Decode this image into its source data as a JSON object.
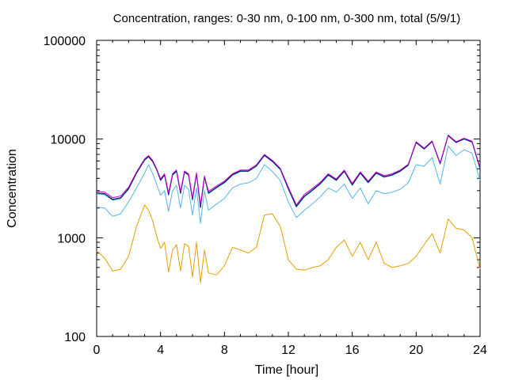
{
  "chart_data": {
    "type": "line",
    "title": "Concentration, ranges: 0-30 nm, 0-100 nm, 0-300 nm, total (5/9/1)",
    "xlabel": "Time [hour]",
    "ylabel": "Concentration",
    "xlim": [
      0,
      24
    ],
    "ylim": [
      100,
      100000
    ],
    "yscale": "log",
    "grid": false,
    "legend": "none",
    "x_ticks": [
      0,
      4,
      8,
      12,
      16,
      20,
      24
    ],
    "x_tick_labels": [
      "0",
      "4",
      "8",
      "12",
      "16",
      "20",
      "24"
    ],
    "y_ticks": [
      100,
      1000,
      10000,
      100000
    ],
    "y_tick_labels": [
      "100",
      "1000",
      "10000",
      "100000"
    ],
    "x": [
      0,
      0.5,
      1,
      1.5,
      2,
      2.5,
      3,
      3.25,
      3.5,
      3.75,
      4,
      4.25,
      4.5,
      4.75,
      5,
      5.25,
      5.5,
      5.75,
      6,
      6.25,
      6.5,
      6.75,
      7,
      7.5,
      8,
      8.5,
      9,
      9.5,
      10,
      10.5,
      11,
      11.5,
      12,
      12.5,
      13,
      13.5,
      14,
      14.5,
      15,
      15.5,
      16,
      16.5,
      17,
      17.5,
      18,
      18.5,
      19,
      19.5,
      20,
      20.5,
      21,
      21.5,
      22,
      22.5,
      23,
      23.5,
      24
    ],
    "series": [
      {
        "color": "#e69f00",
        "values": [
          740,
          620,
          460,
          480,
          650,
          1300,
          2150,
          1900,
          1500,
          1050,
          780,
          900,
          450,
          750,
          850,
          460,
          870,
          820,
          400,
          900,
          350,
          750,
          440,
          420,
          520,
          800,
          750,
          700,
          800,
          1700,
          1750,
          1300,
          600,
          480,
          470,
          500,
          520,
          600,
          800,
          950,
          650,
          900,
          600,
          900,
          550,
          500,
          520,
          550,
          650,
          850,
          1100,
          700,
          1550,
          1250,
          1200,
          1000,
          480
        ]
      },
      {
        "color": "#56b4e9",
        "values": [
          2050,
          2000,
          1650,
          1750,
          2300,
          3200,
          4500,
          5500,
          4500,
          3500,
          2700,
          3000,
          1850,
          3000,
          3400,
          2000,
          3400,
          3100,
          1700,
          3200,
          1400,
          3000,
          1900,
          2200,
          2500,
          3200,
          3500,
          3600,
          4000,
          5500,
          4700,
          3800,
          2300,
          1600,
          1900,
          2200,
          2600,
          3200,
          2900,
          3500,
          2500,
          3200,
          2200,
          3000,
          2800,
          2900,
          3100,
          3600,
          5500,
          5300,
          6500,
          3500,
          8500,
          6800,
          7800,
          7200,
          3800
        ]
      },
      {
        "color": "#009e73",
        "values": [
          2800,
          2750,
          2400,
          2500,
          3100,
          4500,
          6100,
          6600,
          5900,
          4900,
          3800,
          4300,
          2700,
          4300,
          4700,
          2800,
          4600,
          4300,
          2400,
          4400,
          2000,
          4100,
          2800,
          3200,
          3600,
          4300,
          4700,
          4700,
          5300,
          6800,
          5900,
          4900,
          3100,
          2050,
          2600,
          3000,
          3500,
          4300,
          3800,
          4700,
          3400,
          4500,
          3600,
          4500,
          4100,
          4300,
          4700,
          5400,
          9200,
          7900,
          9400,
          5600,
          10800,
          9200,
          10000,
          9300,
          5000
        ]
      },
      {
        "color": "#000080",
        "values": [
          2850,
          2800,
          2450,
          2550,
          3150,
          4550,
          6150,
          6650,
          5950,
          4950,
          3850,
          4350,
          2750,
          4350,
          4750,
          2850,
          4650,
          4350,
          2450,
          4450,
          2050,
          4150,
          2850,
          3250,
          3650,
          4350,
          4750,
          4750,
          5350,
          6850,
          5950,
          4950,
          3150,
          2080,
          2650,
          3050,
          3550,
          4350,
          3850,
          4750,
          3450,
          4550,
          3650,
          4550,
          4150,
          4350,
          4750,
          5450,
          9250,
          7950,
          9450,
          5650,
          10850,
          9250,
          10050,
          9350,
          5050
        ]
      },
      {
        "color": "#cc00cc",
        "values": [
          2950,
          2900,
          2550,
          2650,
          3250,
          4650,
          6300,
          6800,
          6100,
          5050,
          3950,
          4450,
          2850,
          4450,
          4850,
          2950,
          4750,
          4450,
          2550,
          4550,
          2150,
          4250,
          2950,
          3350,
          3750,
          4450,
          4850,
          4850,
          5500,
          7000,
          6100,
          5050,
          3250,
          2150,
          2750,
          3150,
          3650,
          4450,
          3950,
          4850,
          3550,
          4650,
          3750,
          4650,
          4250,
          4450,
          4850,
          5550,
          9400,
          8100,
          9600,
          5750,
          11000,
          9400,
          10200,
          9500,
          5150
        ]
      }
    ]
  }
}
